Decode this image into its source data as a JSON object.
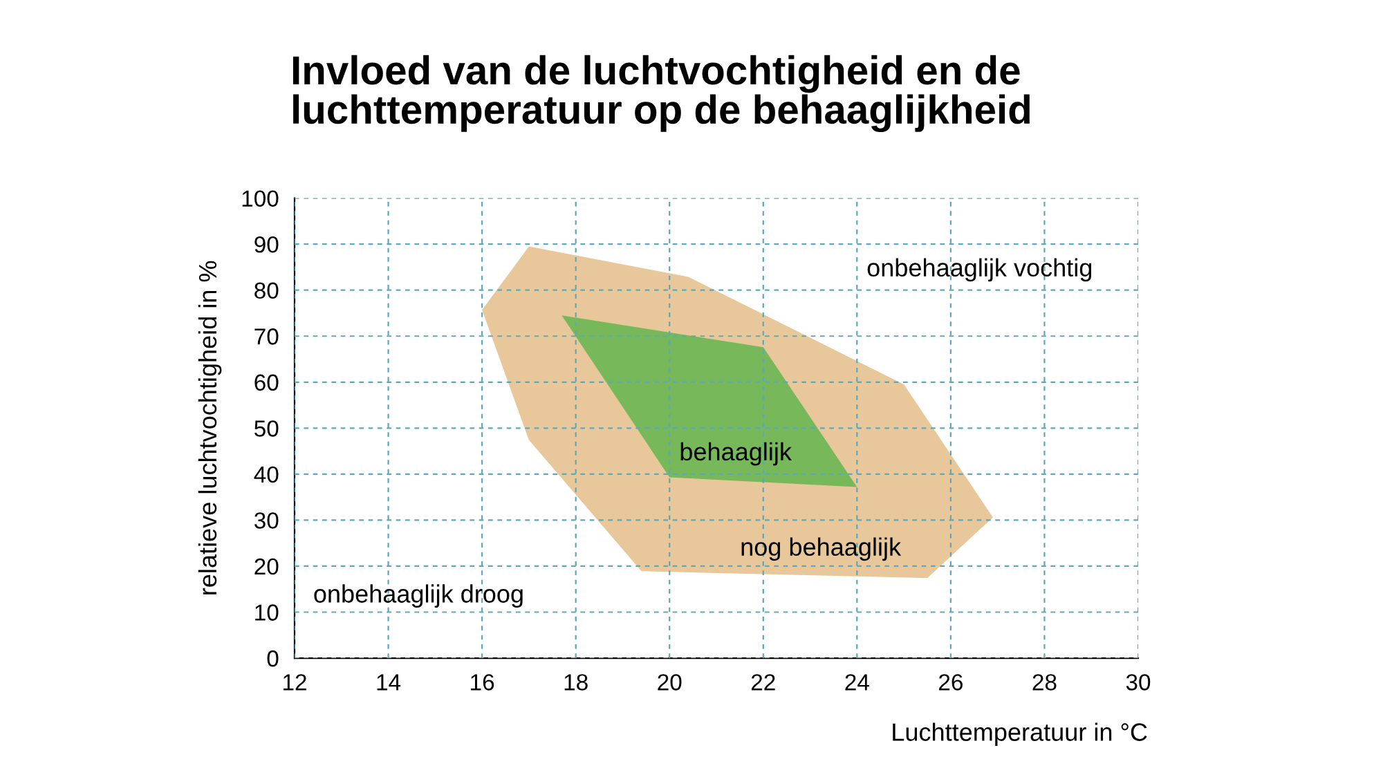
{
  "chart_data": {
    "type": "area",
    "title": "Invloed van de luchtvochtigheid en de\nluchttemperatuur op de behaaglijkheid",
    "xlabel": "Luchttemperatuur in °C",
    "ylabel": "relatieve luchtvochtigheid in %",
    "series": [
      {
        "name": "nog behaaglijk",
        "color": "#e8c89a",
        "x": [
          16.0,
          17.0,
          20.4,
          25.0,
          26.9,
          25.5,
          19.4,
          17.0
        ],
        "values": [
          75.7,
          89.5,
          82.9,
          59.5,
          30.6,
          17.4,
          18.9,
          47.4
        ]
      },
      {
        "name": "behaaglijk",
        "color": "#77b85a",
        "x": [
          17.7,
          22.0,
          24.0,
          20.0
        ],
        "values": [
          74.5,
          67.6,
          37.2,
          39.3
        ]
      }
    ],
    "annotations": [
      "onbehaaglijk vochtig",
      "onbehaaglijk droog"
    ],
    "xlim": [
      12,
      30
    ],
    "xticks": [
      12,
      14,
      16,
      18,
      20,
      22,
      24,
      26,
      28,
      30
    ],
    "ylim": [
      0,
      100
    ],
    "yticks": [
      0,
      10,
      20,
      30,
      40,
      50,
      60,
      70,
      80,
      90,
      100
    ],
    "grid": true,
    "line_style": "dashed"
  }
}
